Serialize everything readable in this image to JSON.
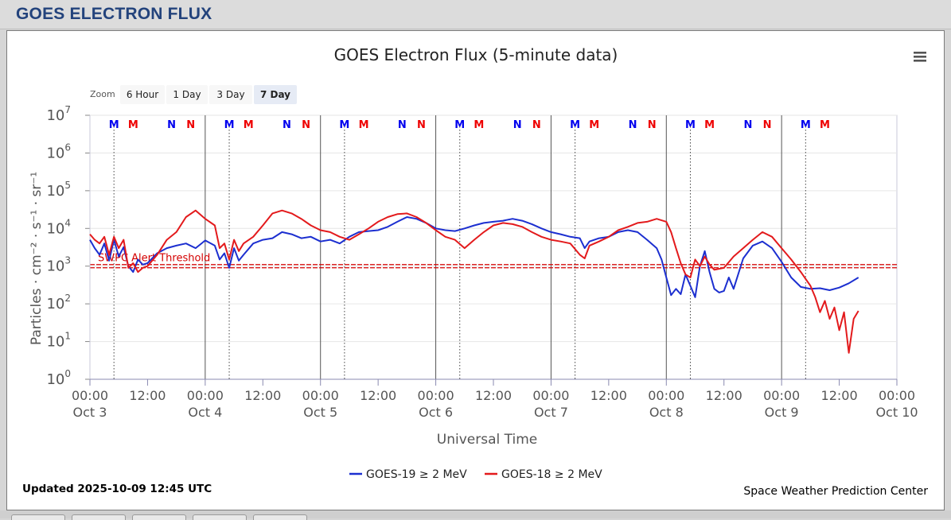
{
  "header": {
    "title": "GOES ELECTRON FLUX"
  },
  "chart_data": {
    "type": "line",
    "title": "GOES Electron Flux (5-minute data)",
    "xlabel": "Universal Time",
    "ylabel": "Particles · cm⁻² · s⁻¹ · sr⁻¹",
    "y_scale": "log",
    "ylim": [
      1,
      10000000
    ],
    "y_ticks": [
      {
        "base": "10",
        "exp": "0"
      },
      {
        "base": "10",
        "exp": "1"
      },
      {
        "base": "10",
        "exp": "2"
      },
      {
        "base": "10",
        "exp": "3"
      },
      {
        "base": "10",
        "exp": "4"
      },
      {
        "base": "10",
        "exp": "5"
      },
      {
        "base": "10",
        "exp": "6"
      },
      {
        "base": "10",
        "exp": "7"
      }
    ],
    "x_range_hours": [
      0,
      168
    ],
    "x_ticks": [
      {
        "time": "00:00",
        "date": "Oct 3"
      },
      {
        "time": "12:00",
        "date": ""
      },
      {
        "time": "00:00",
        "date": "Oct 4"
      },
      {
        "time": "12:00",
        "date": ""
      },
      {
        "time": "00:00",
        "date": "Oct 5"
      },
      {
        "time": "12:00",
        "date": ""
      },
      {
        "time": "00:00",
        "date": "Oct 6"
      },
      {
        "time": "12:00",
        "date": ""
      },
      {
        "time": "00:00",
        "date": "Oct 7"
      },
      {
        "time": "12:00",
        "date": ""
      },
      {
        "time": "00:00",
        "date": "Oct 8"
      },
      {
        "time": "12:00",
        "date": ""
      },
      {
        "time": "00:00",
        "date": "Oct 9"
      },
      {
        "time": "12:00",
        "date": ""
      },
      {
        "time": "00:00",
        "date": "Oct 10"
      }
    ],
    "threshold": {
      "label": "SWPC Alert Threshold",
      "value": 1000,
      "color": "#d40000"
    },
    "day_boundaries_hours": [
      24,
      48,
      72,
      96,
      120,
      144
    ],
    "midnight_markers_hours": [
      5,
      29,
      53,
      77,
      101,
      125,
      149
    ],
    "mn_markers": [
      {
        "label": "M",
        "hour": 5,
        "color": "#0000ee"
      },
      {
        "label": "M",
        "hour": 9,
        "color": "#ee0000"
      },
      {
        "label": "N",
        "hour": 17,
        "color": "#0000ee"
      },
      {
        "label": "N",
        "hour": 21,
        "color": "#ee0000"
      },
      {
        "label": "M",
        "hour": 29,
        "color": "#0000ee"
      },
      {
        "label": "M",
        "hour": 33,
        "color": "#ee0000"
      },
      {
        "label": "N",
        "hour": 41,
        "color": "#0000ee"
      },
      {
        "label": "N",
        "hour": 45,
        "color": "#ee0000"
      },
      {
        "label": "M",
        "hour": 53,
        "color": "#0000ee"
      },
      {
        "label": "M",
        "hour": 57,
        "color": "#ee0000"
      },
      {
        "label": "N",
        "hour": 65,
        "color": "#0000ee"
      },
      {
        "label": "N",
        "hour": 69,
        "color": "#ee0000"
      },
      {
        "label": "M",
        "hour": 77,
        "color": "#0000ee"
      },
      {
        "label": "M",
        "hour": 81,
        "color": "#ee0000"
      },
      {
        "label": "N",
        "hour": 89,
        "color": "#0000ee"
      },
      {
        "label": "N",
        "hour": 93,
        "color": "#ee0000"
      },
      {
        "label": "M",
        "hour": 101,
        "color": "#0000ee"
      },
      {
        "label": "M",
        "hour": 105,
        "color": "#ee0000"
      },
      {
        "label": "N",
        "hour": 113,
        "color": "#0000ee"
      },
      {
        "label": "N",
        "hour": 117,
        "color": "#ee0000"
      },
      {
        "label": "M",
        "hour": 125,
        "color": "#0000ee"
      },
      {
        "label": "M",
        "hour": 129,
        "color": "#ee0000"
      },
      {
        "label": "N",
        "hour": 137,
        "color": "#0000ee"
      },
      {
        "label": "N",
        "hour": 141,
        "color": "#ee0000"
      },
      {
        "label": "M",
        "hour": 149,
        "color": "#0000ee"
      },
      {
        "label": "M",
        "hour": 153,
        "color": "#ee0000"
      }
    ],
    "series": [
      {
        "name": "GOES-19 ≥ 2 MeV",
        "color": "#1c2fd0",
        "points": [
          [
            0,
            5000
          ],
          [
            1,
            3000
          ],
          [
            2,
            2000
          ],
          [
            3,
            4000
          ],
          [
            4,
            1400
          ],
          [
            5,
            5000
          ],
          [
            6,
            1800
          ],
          [
            7,
            3200
          ],
          [
            8,
            1000
          ],
          [
            9,
            700
          ],
          [
            10,
            1500
          ],
          [
            11,
            1100
          ],
          [
            12,
            1200
          ],
          [
            14,
            2200
          ],
          [
            16,
            3000
          ],
          [
            18,
            3500
          ],
          [
            20,
            4000
          ],
          [
            22,
            3000
          ],
          [
            24,
            4800
          ],
          [
            26,
            3500
          ],
          [
            27,
            1500
          ],
          [
            28,
            2200
          ],
          [
            29,
            900
          ],
          [
            30,
            3000
          ],
          [
            31,
            1400
          ],
          [
            32,
            2000
          ],
          [
            34,
            4000
          ],
          [
            36,
            5000
          ],
          [
            38,
            5500
          ],
          [
            40,
            8000
          ],
          [
            42,
            7000
          ],
          [
            44,
            5500
          ],
          [
            46,
            6000
          ],
          [
            48,
            4500
          ],
          [
            50,
            5000
          ],
          [
            52,
            4000
          ],
          [
            54,
            6000
          ],
          [
            56,
            8000
          ],
          [
            58,
            8500
          ],
          [
            60,
            9000
          ],
          [
            62,
            11000
          ],
          [
            64,
            15000
          ],
          [
            66,
            20000
          ],
          [
            68,
            18000
          ],
          [
            70,
            14000
          ],
          [
            72,
            10000
          ],
          [
            74,
            9000
          ],
          [
            76,
            8500
          ],
          [
            78,
            10000
          ],
          [
            80,
            12000
          ],
          [
            82,
            14000
          ],
          [
            84,
            15000
          ],
          [
            86,
            16000
          ],
          [
            88,
            18000
          ],
          [
            90,
            16000
          ],
          [
            92,
            13000
          ],
          [
            94,
            10000
          ],
          [
            96,
            8000
          ],
          [
            98,
            7000
          ],
          [
            100,
            6000
          ],
          [
            102,
            5500
          ],
          [
            103,
            3000
          ],
          [
            104,
            4500
          ],
          [
            106,
            5500
          ],
          [
            108,
            6000
          ],
          [
            110,
            8000
          ],
          [
            112,
            9000
          ],
          [
            114,
            8000
          ],
          [
            116,
            5000
          ],
          [
            118,
            3000
          ],
          [
            119,
            1500
          ],
          [
            120,
            500
          ],
          [
            121,
            170
          ],
          [
            122,
            250
          ],
          [
            123,
            180
          ],
          [
            124,
            600
          ],
          [
            125,
            300
          ],
          [
            126,
            150
          ],
          [
            127,
            1000
          ],
          [
            128,
            2500
          ],
          [
            129,
            700
          ],
          [
            130,
            250
          ],
          [
            131,
            200
          ],
          [
            132,
            220
          ],
          [
            133,
            500
          ],
          [
            134,
            250
          ],
          [
            136,
            1600
          ],
          [
            138,
            3500
          ],
          [
            140,
            4500
          ],
          [
            142,
            3000
          ],
          [
            144,
            1300
          ],
          [
            146,
            500
          ],
          [
            148,
            280
          ],
          [
            150,
            250
          ],
          [
            152,
            260
          ],
          [
            154,
            230
          ],
          [
            156,
            270
          ],
          [
            158,
            350
          ],
          [
            160,
            500
          ]
        ]
      },
      {
        "name": "GOES-18 ≥ 2 MeV",
        "color": "#e31a1c",
        "points": [
          [
            0,
            7000
          ],
          [
            1,
            5000
          ],
          [
            2,
            4000
          ],
          [
            3,
            6000
          ],
          [
            4,
            2000
          ],
          [
            5,
            6000
          ],
          [
            6,
            3000
          ],
          [
            7,
            5000
          ],
          [
            8,
            900
          ],
          [
            9,
            1200
          ],
          [
            10,
            700
          ],
          [
            11,
            900
          ],
          [
            12,
            1000
          ],
          [
            14,
            2000
          ],
          [
            16,
            5000
          ],
          [
            18,
            8000
          ],
          [
            20,
            20000
          ],
          [
            22,
            30000
          ],
          [
            24,
            18000
          ],
          [
            26,
            12000
          ],
          [
            27,
            3000
          ],
          [
            28,
            4000
          ],
          [
            29,
            1500
          ],
          [
            30,
            5000
          ],
          [
            31,
            2500
          ],
          [
            32,
            4000
          ],
          [
            34,
            6000
          ],
          [
            36,
            12000
          ],
          [
            38,
            25000
          ],
          [
            40,
            30000
          ],
          [
            42,
            25000
          ],
          [
            44,
            18000
          ],
          [
            46,
            12000
          ],
          [
            48,
            9000
          ],
          [
            50,
            8000
          ],
          [
            52,
            6000
          ],
          [
            54,
            5000
          ],
          [
            56,
            7000
          ],
          [
            58,
            10000
          ],
          [
            60,
            15000
          ],
          [
            62,
            20000
          ],
          [
            64,
            24000
          ],
          [
            66,
            25000
          ],
          [
            68,
            20000
          ],
          [
            70,
            14000
          ],
          [
            72,
            9000
          ],
          [
            74,
            6000
          ],
          [
            76,
            5000
          ],
          [
            78,
            3000
          ],
          [
            80,
            5000
          ],
          [
            82,
            8000
          ],
          [
            84,
            12000
          ],
          [
            86,
            14000
          ],
          [
            88,
            13000
          ],
          [
            90,
            11000
          ],
          [
            92,
            8000
          ],
          [
            94,
            6000
          ],
          [
            96,
            5000
          ],
          [
            98,
            4500
          ],
          [
            100,
            4000
          ],
          [
            102,
            2000
          ],
          [
            103,
            1600
          ],
          [
            104,
            3500
          ],
          [
            106,
            4500
          ],
          [
            108,
            6000
          ],
          [
            110,
            9000
          ],
          [
            112,
            11000
          ],
          [
            114,
            14000
          ],
          [
            116,
            15000
          ],
          [
            118,
            18000
          ],
          [
            120,
            15000
          ],
          [
            121,
            8000
          ],
          [
            122,
            3000
          ],
          [
            123,
            1200
          ],
          [
            124,
            600
          ],
          [
            125,
            500
          ],
          [
            126,
            1500
          ],
          [
            127,
            1000
          ],
          [
            128,
            1800
          ],
          [
            129,
            1100
          ],
          [
            130,
            800
          ],
          [
            132,
            900
          ],
          [
            134,
            1800
          ],
          [
            136,
            3000
          ],
          [
            138,
            5000
          ],
          [
            140,
            8000
          ],
          [
            142,
            6000
          ],
          [
            144,
            3000
          ],
          [
            146,
            1500
          ],
          [
            148,
            700
          ],
          [
            150,
            300
          ],
          [
            151,
            150
          ],
          [
            152,
            60
          ],
          [
            153,
            120
          ],
          [
            154,
            40
          ],
          [
            155,
            80
          ],
          [
            156,
            20
          ],
          [
            157,
            60
          ],
          [
            158,
            5
          ],
          [
            159,
            40
          ],
          [
            160,
            65
          ]
        ]
      }
    ],
    "legend_position": "bottom-center"
  },
  "zoom": {
    "label": "Zoom",
    "buttons": [
      "6 Hour",
      "1 Day",
      "3 Day",
      "7 Day"
    ],
    "selected": "7 Day"
  },
  "footer": {
    "updated": "Updated 2025-10-09 12:45 UTC",
    "credit": "Space Weather Prediction Center"
  }
}
